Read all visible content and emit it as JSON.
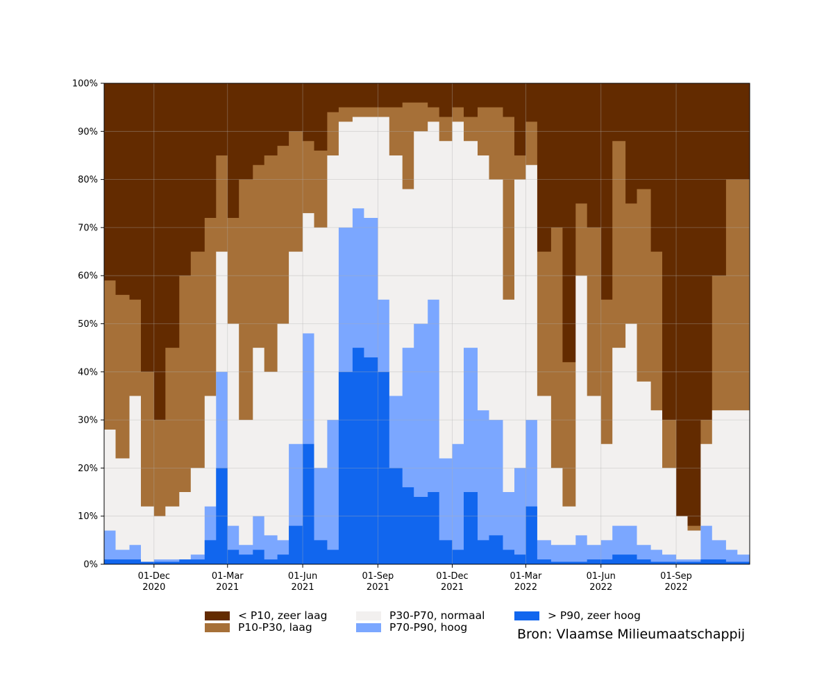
{
  "chart_data": {
    "type": "area",
    "stacked": true,
    "x_range": [
      "2020-10-01",
      "2022-11-30"
    ],
    "ylim": [
      0,
      100
    ],
    "y_ticks": [
      "0%",
      "10%",
      "20%",
      "30%",
      "40%",
      "50%",
      "60%",
      "70%",
      "80%",
      "90%",
      "100%"
    ],
    "x_ticks": [
      {
        "date": "2020-12-01",
        "line1": "01-Dec",
        "line2": "2020"
      },
      {
        "date": "2021-03-01",
        "line1": "01-Mar",
        "line2": "2021"
      },
      {
        "date": "2021-06-01",
        "line1": "01-Jun",
        "line2": "2021"
      },
      {
        "date": "2021-09-01",
        "line1": "01-Sep",
        "line2": "2021"
      },
      {
        "date": "2021-12-01",
        "line1": "01-Dec",
        "line2": "2021"
      },
      {
        "date": "2022-03-01",
        "line1": "01-Mar",
        "line2": "2022"
      },
      {
        "date": "2022-06-01",
        "line1": "01-Jun",
        "line2": "2022"
      },
      {
        "date": "2022-09-01",
        "line1": "01-Sep",
        "line2": "2022"
      }
    ],
    "grid": true,
    "legend_position": "bottom",
    "dates": [
      "2020-10-01",
      "2020-10-15",
      "2020-11-01",
      "2020-11-15",
      "2020-12-01",
      "2020-12-15",
      "2021-01-01",
      "2021-01-15",
      "2021-02-01",
      "2021-02-15",
      "2021-03-01",
      "2021-03-15",
      "2021-04-01",
      "2021-04-15",
      "2021-05-01",
      "2021-05-15",
      "2021-06-01",
      "2021-06-15",
      "2021-07-01",
      "2021-07-15",
      "2021-08-01",
      "2021-08-15",
      "2021-09-01",
      "2021-09-15",
      "2021-10-01",
      "2021-10-15",
      "2021-11-01",
      "2021-11-15",
      "2021-12-01",
      "2021-12-15",
      "2022-01-01",
      "2022-01-15",
      "2022-02-01",
      "2022-02-15",
      "2022-03-01",
      "2022-03-15",
      "2022-04-01",
      "2022-04-15",
      "2022-05-01",
      "2022-05-15",
      "2022-06-01",
      "2022-06-15",
      "2022-07-01",
      "2022-07-15",
      "2022-08-01",
      "2022-08-15",
      "2022-09-01",
      "2022-09-15",
      "2022-10-01",
      "2022-10-15",
      "2022-11-01",
      "2022-11-15",
      "2022-11-30"
    ],
    "series": [
      {
        "name": "> P90, zeer hoog",
        "color": "#1166ee",
        "values": [
          1,
          1,
          1,
          0.5,
          0.5,
          0.5,
          1,
          1,
          5,
          20,
          3,
          2,
          3,
          1,
          2,
          8,
          25,
          5,
          3,
          40,
          45,
          43,
          40,
          20,
          16,
          14,
          15,
          5,
          3,
          15,
          5,
          6,
          3,
          2,
          12,
          1,
          0.5,
          0.5,
          0.5,
          1,
          1,
          2,
          2,
          1,
          0.5,
          0.5,
          0.5,
          0.5,
          1,
          1,
          0.5,
          0.5,
          0.5
        ]
      },
      {
        "name": "P70-P90, hoog",
        "color": "#7ba7ff",
        "values": [
          7,
          3,
          4,
          0.5,
          1,
          1,
          1,
          2,
          12,
          40,
          8,
          4,
          10,
          6,
          5,
          25,
          48,
          20,
          30,
          70,
          74,
          72,
          55,
          35,
          45,
          50,
          55,
          22,
          25,
          45,
          32,
          30,
          15,
          20,
          30,
          5,
          4,
          4,
          6,
          4,
          5,
          8,
          8,
          4,
          3,
          2,
          1,
          1,
          8,
          5,
          3,
          2,
          2
        ]
      },
      {
        "name": "P30-P70, normaal",
        "color": "#f2f0ef",
        "values": [
          28,
          22,
          35,
          12,
          10,
          12,
          15,
          20,
          35,
          65,
          50,
          30,
          45,
          40,
          50,
          65,
          73,
          70,
          85,
          92,
          93,
          93,
          93,
          85,
          78,
          90,
          92,
          88,
          92,
          88,
          85,
          80,
          55,
          80,
          83,
          35,
          20,
          12,
          60,
          35,
          25,
          45,
          50,
          38,
          32,
          20,
          10,
          7,
          25,
          32,
          32,
          32,
          32
        ]
      },
      {
        "name": "P10-P30, laag",
        "color": "#a67038",
        "values": [
          59,
          56,
          55,
          40,
          30,
          45,
          60,
          65,
          72,
          85,
          72,
          80,
          83,
          85,
          87,
          90,
          88,
          86,
          94,
          95,
          95,
          95,
          95,
          95,
          96,
          96,
          95,
          93,
          95,
          93,
          95,
          95,
          93,
          85,
          92,
          65,
          70,
          42,
          75,
          70,
          55,
          88,
          75,
          78,
          65,
          30,
          10,
          8,
          30,
          60,
          80,
          80,
          75
        ]
      },
      {
        "name": "< P10, zeer laag",
        "color": "#632b00",
        "values": [
          100,
          100,
          100,
          100,
          100,
          100,
          100,
          100,
          100,
          100,
          100,
          100,
          100,
          100,
          100,
          100,
          100,
          100,
          100,
          100,
          100,
          100,
          100,
          100,
          100,
          100,
          100,
          100,
          100,
          100,
          100,
          100,
          100,
          100,
          100,
          100,
          100,
          100,
          100,
          100,
          100,
          100,
          100,
          100,
          100,
          100,
          100,
          100,
          100,
          100,
          100,
          100,
          100
        ]
      }
    ],
    "legend": [
      {
        "label": "< P10, zeer laag",
        "color": "#632b00"
      },
      {
        "label": "P10-P30, laag",
        "color": "#a67038"
      },
      {
        "label": "P30-P70, normaal",
        "color": "#f2f0ef"
      },
      {
        "label": "P70-P90, hoog",
        "color": "#7ba7ff"
      },
      {
        "label": "> P90, zeer hoog",
        "color": "#1166ee"
      }
    ],
    "source_note": "Bron: Vlaamse Milieumaatschappij"
  }
}
